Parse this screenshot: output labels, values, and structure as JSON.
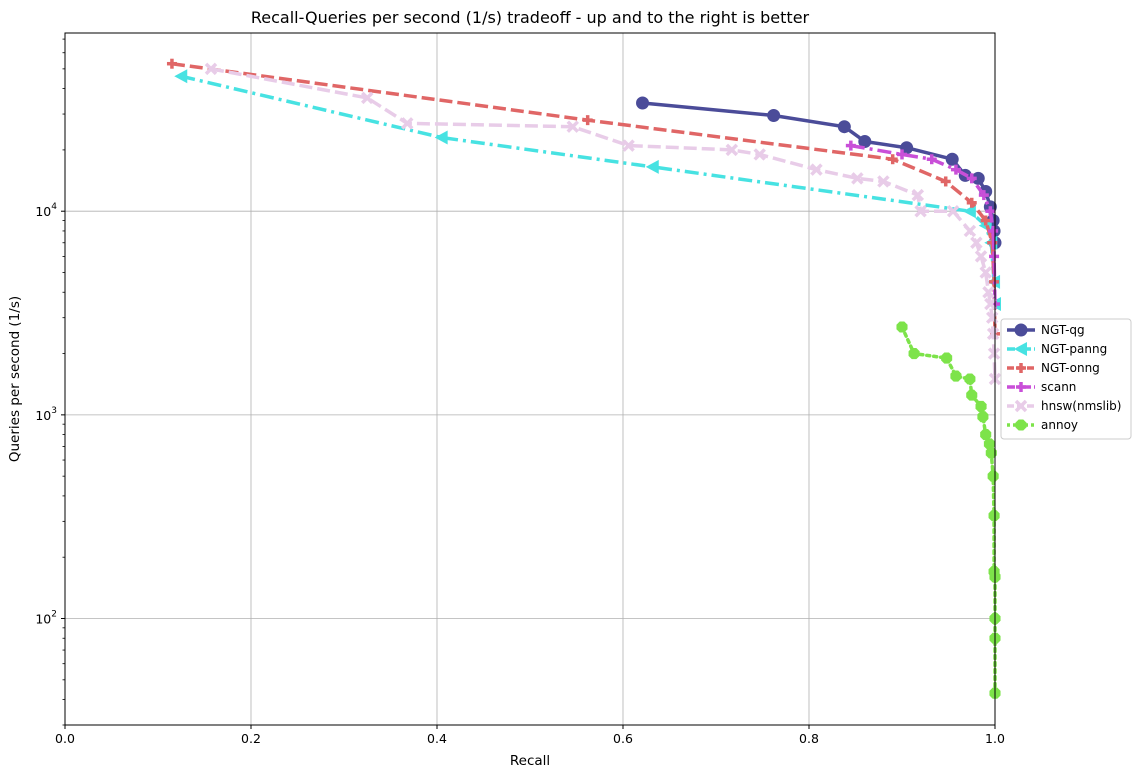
{
  "chart_data": {
    "type": "line",
    "title": "Recall-Queries per second (1/s) tradeoff - up and to the right is better",
    "xlabel": "Recall",
    "ylabel": "Queries per second (1/s)",
    "xlim": [
      0.0,
      1.0
    ],
    "ylim": [
      30,
      75000
    ],
    "yscale": "log",
    "grid": true,
    "legend_position": "center-right (outside plot)",
    "x_ticks": [
      {
        "value": 0.0,
        "label": "0.0"
      },
      {
        "value": 0.2,
        "label": "0.2"
      },
      {
        "value": 0.4,
        "label": "0.4"
      },
      {
        "value": 0.6,
        "label": "0.6"
      },
      {
        "value": 0.8,
        "label": "0.8"
      },
      {
        "value": 1.0,
        "label": "1.0"
      }
    ],
    "y_ticks": [
      {
        "value": 100,
        "base": "10",
        "exp": "2"
      },
      {
        "value": 1000,
        "base": "10",
        "exp": "3"
      },
      {
        "value": 10000,
        "base": "10",
        "exp": "4"
      }
    ],
    "series": [
      {
        "name": "NGT-qg",
        "color": "#4b4c99",
        "dash": "solid",
        "marker": "circle",
        "points": [
          [
            0.621,
            34000
          ],
          [
            0.762,
            29500
          ],
          [
            0.838,
            26000
          ],
          [
            0.86,
            22000
          ],
          [
            0.905,
            20500
          ],
          [
            0.954,
            18000
          ],
          [
            0.968,
            15000
          ],
          [
            0.982,
            14500
          ],
          [
            0.99,
            12500
          ],
          [
            0.995,
            10500
          ],
          [
            0.998,
            9000
          ],
          [
            0.999,
            8000
          ],
          [
            1.0,
            7000
          ]
        ]
      },
      {
        "name": "NGT-panng",
        "color": "#47e2e2",
        "dash": "dashdot",
        "marker": "triangle-left",
        "points": [
          [
            0.125,
            46000
          ],
          [
            0.405,
            23000
          ],
          [
            0.632,
            16500
          ],
          [
            0.973,
            10000
          ],
          [
            0.99,
            8500
          ],
          [
            0.996,
            7000
          ],
          [
            0.999,
            4500
          ],
          [
            1.0,
            3500
          ]
        ]
      },
      {
        "name": "NGT-onng",
        "color": "#e06666",
        "dash": "dashed",
        "marker": "plus",
        "points": [
          [
            0.115,
            53000
          ],
          [
            0.562,
            28000
          ],
          [
            0.89,
            18000
          ],
          [
            0.947,
            14000
          ],
          [
            0.975,
            11000
          ],
          [
            0.99,
            9000
          ],
          [
            0.997,
            7000
          ],
          [
            0.999,
            4500
          ],
          [
            1.0,
            2500
          ]
        ]
      },
      {
        "name": "scann",
        "color": "#c94fd8",
        "dash": "dashdot",
        "marker": "plus",
        "points": [
          [
            0.845,
            21000
          ],
          [
            0.9,
            19000
          ],
          [
            0.932,
            18000
          ],
          [
            0.958,
            16000
          ],
          [
            0.975,
            14500
          ],
          [
            0.988,
            12000
          ],
          [
            0.995,
            10000
          ],
          [
            0.998,
            8000
          ],
          [
            0.999,
            6000
          ],
          [
            1.0,
            3500
          ]
        ]
      },
      {
        "name": "hnsw(nmslib)",
        "color": "#e8cce8",
        "dash": "dashed",
        "marker": "x",
        "points": [
          [
            0.157,
            50000
          ],
          [
            0.325,
            36000
          ],
          [
            0.368,
            27000
          ],
          [
            0.546,
            26000
          ],
          [
            0.606,
            21000
          ],
          [
            0.717,
            20000
          ],
          [
            0.747,
            19000
          ],
          [
            0.808,
            16000
          ],
          [
            0.852,
            14500
          ],
          [
            0.88,
            14000
          ],
          [
            0.917,
            12000
          ],
          [
            0.92,
            10000
          ],
          [
            0.955,
            10000
          ],
          [
            0.973,
            8000
          ],
          [
            0.98,
            7000
          ],
          [
            0.985,
            6000
          ],
          [
            0.99,
            5000
          ],
          [
            0.993,
            4000
          ],
          [
            0.995,
            3500
          ],
          [
            0.997,
            3000
          ],
          [
            0.998,
            2500
          ],
          [
            0.999,
            2000
          ],
          [
            1.0,
            1500
          ]
        ]
      },
      {
        "name": "annoy",
        "color": "#7de34a",
        "dash": "dotted",
        "marker": "octagon",
        "points": [
          [
            0.9,
            2700
          ],
          [
            0.913,
            2000
          ],
          [
            0.948,
            1900
          ],
          [
            0.958,
            1550
          ],
          [
            0.973,
            1500
          ],
          [
            0.975,
            1250
          ],
          [
            0.985,
            1100
          ],
          [
            0.987,
            980
          ],
          [
            0.99,
            800
          ],
          [
            0.994,
            720
          ],
          [
            0.996,
            650
          ],
          [
            0.998,
            500
          ],
          [
            0.999,
            320
          ],
          [
            0.999,
            170
          ],
          [
            1.0,
            160
          ],
          [
            1.0,
            100
          ],
          [
            1.0,
            80
          ],
          [
            1.0,
            43
          ]
        ]
      }
    ]
  }
}
